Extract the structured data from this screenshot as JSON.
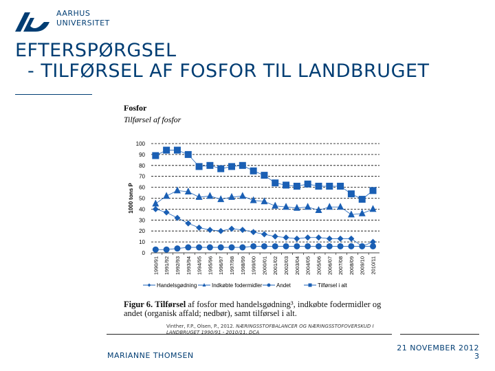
{
  "header": {
    "logo_line1": "AARHUS",
    "logo_line2": "UNIVERSITET",
    "title_line1": "EFTERSPØRGSEL",
    "title_line2": "- TILFØRSEL AF FOSFOR TIL LANDBRUGET"
  },
  "figure": {
    "heading": "Fosfor",
    "subheading": "Tilførsel af fosfor",
    "caption_label": "Figur 6.",
    "caption_bold": "Tilførsel",
    "caption_text": "af fosfor med handelsgødning³, indkøbte fodermidler og andet (organisk affald; nedbør), samt tilførsel i alt.",
    "citation_authors": "Vinther, F.P., Olsen, P., 2012.",
    "citation_title": "NÆRINGSSTOFBALANCER OG NÆRINGSSTOFOVERSKUD I LANDBRUGET 1990/91 - 2010/11. DCA"
  },
  "footer": {
    "author": "MARIANNE THOMSEN",
    "date": "21 NOVEMBER 2012",
    "page": "3"
  },
  "colors": {
    "brand": "#003d73",
    "series": "#1a5fb4"
  },
  "chart_data": {
    "type": "line",
    "title": "Fosfor",
    "subtitle": "Tilførsel af fosfor",
    "xlabel": "",
    "ylabel": "1000 tons P",
    "ylim": [
      0,
      100
    ],
    "yticks": [
      0,
      10,
      20,
      30,
      40,
      50,
      60,
      70,
      80,
      90,
      100
    ],
    "grid": "horizontal dashed",
    "legend": "bottom",
    "categories": [
      "1990/91",
      "1991/92",
      "1992/93",
      "1993/94",
      "1994/95",
      "1995/96",
      "1996/97",
      "1997/98",
      "1998/99",
      "1999/00",
      "2000/01",
      "2001/02",
      "2002/03",
      "2003/04",
      "2004/05",
      "2005/06",
      "2006/07",
      "2007/08",
      "2008/09",
      "2009/10",
      "2010/11"
    ],
    "series": [
      {
        "name": "Handelsgødning",
        "marker": "diamond",
        "values": [
          40,
          37,
          32,
          27,
          23,
          21,
          20,
          22,
          21,
          19,
          17,
          15,
          14,
          13,
          14,
          14,
          13,
          13,
          13,
          6,
          10
        ]
      },
      {
        "name": "Indkøbte fodermidler",
        "marker": "triangle",
        "values": [
          45,
          52,
          57,
          56,
          51,
          52,
          49,
          51,
          52,
          48,
          47,
          43,
          42,
          41,
          42,
          39,
          42,
          42,
          35,
          36,
          40
        ]
      },
      {
        "name": "Andet",
        "marker": "circle",
        "values": [
          3,
          3,
          4,
          5,
          5,
          5,
          5,
          5,
          5,
          6,
          6,
          6,
          6,
          6,
          6,
          6,
          6,
          6,
          6,
          6,
          6
        ]
      },
      {
        "name": "Tilførsel i alt",
        "marker": "square",
        "values": [
          89,
          94,
          94,
          90,
          79,
          80,
          77,
          79,
          80,
          75,
          71,
          64,
          62,
          61,
          63,
          61,
          61,
          61,
          54,
          49,
          57
        ]
      }
    ]
  }
}
